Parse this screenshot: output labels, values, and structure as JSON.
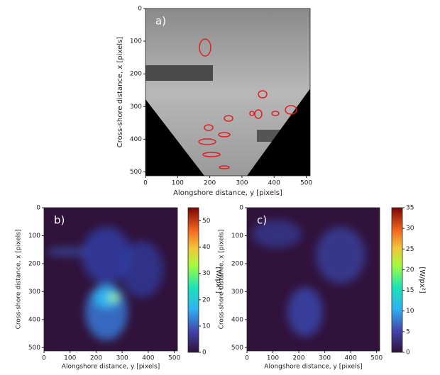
{
  "chart_data": [
    {
      "type": "image",
      "label": "a)",
      "xlabel": "Alongshore distance, y [pixels]",
      "ylabel": "Cross-shore distance, x [pixels]",
      "xlim": [
        0,
        512
      ],
      "ylim": [
        512,
        0
      ],
      "xticks": [
        0,
        100,
        200,
        300,
        400,
        500
      ],
      "yticks": [
        0,
        100,
        200,
        300,
        400,
        500
      ]
    },
    {
      "type": "heatmap",
      "label": "b)",
      "xlabel": "Alongshore distance, y [pixels]",
      "ylabel": "Cross-shore distance, x [pixels]",
      "xlim": [
        0,
        512
      ],
      "ylim": [
        512,
        0
      ],
      "xticks": [
        0,
        100,
        200,
        300,
        400,
        500
      ],
      "yticks": [
        0,
        100,
        200,
        300,
        400,
        500
      ],
      "colorbar_label": "[W/px²]",
      "clim": [
        0,
        55
      ],
      "cticks": [
        0,
        10,
        20,
        30,
        40,
        50
      ]
    },
    {
      "type": "heatmap",
      "label": "c)",
      "xlabel": "Alongshore distance, y [pixels]",
      "ylabel": "Cross-shore distance, x [pixels]",
      "xlim": [
        0,
        512
      ],
      "ylim": [
        512,
        0
      ],
      "xticks": [
        0,
        100,
        200,
        300,
        400,
        500
      ],
      "yticks": [
        0,
        100,
        200,
        300,
        400,
        500
      ],
      "colorbar_label": "[W/px²]",
      "clim": [
        0,
        35
      ],
      "cticks": [
        0,
        5,
        10,
        15,
        20,
        25,
        30,
        35
      ]
    }
  ]
}
